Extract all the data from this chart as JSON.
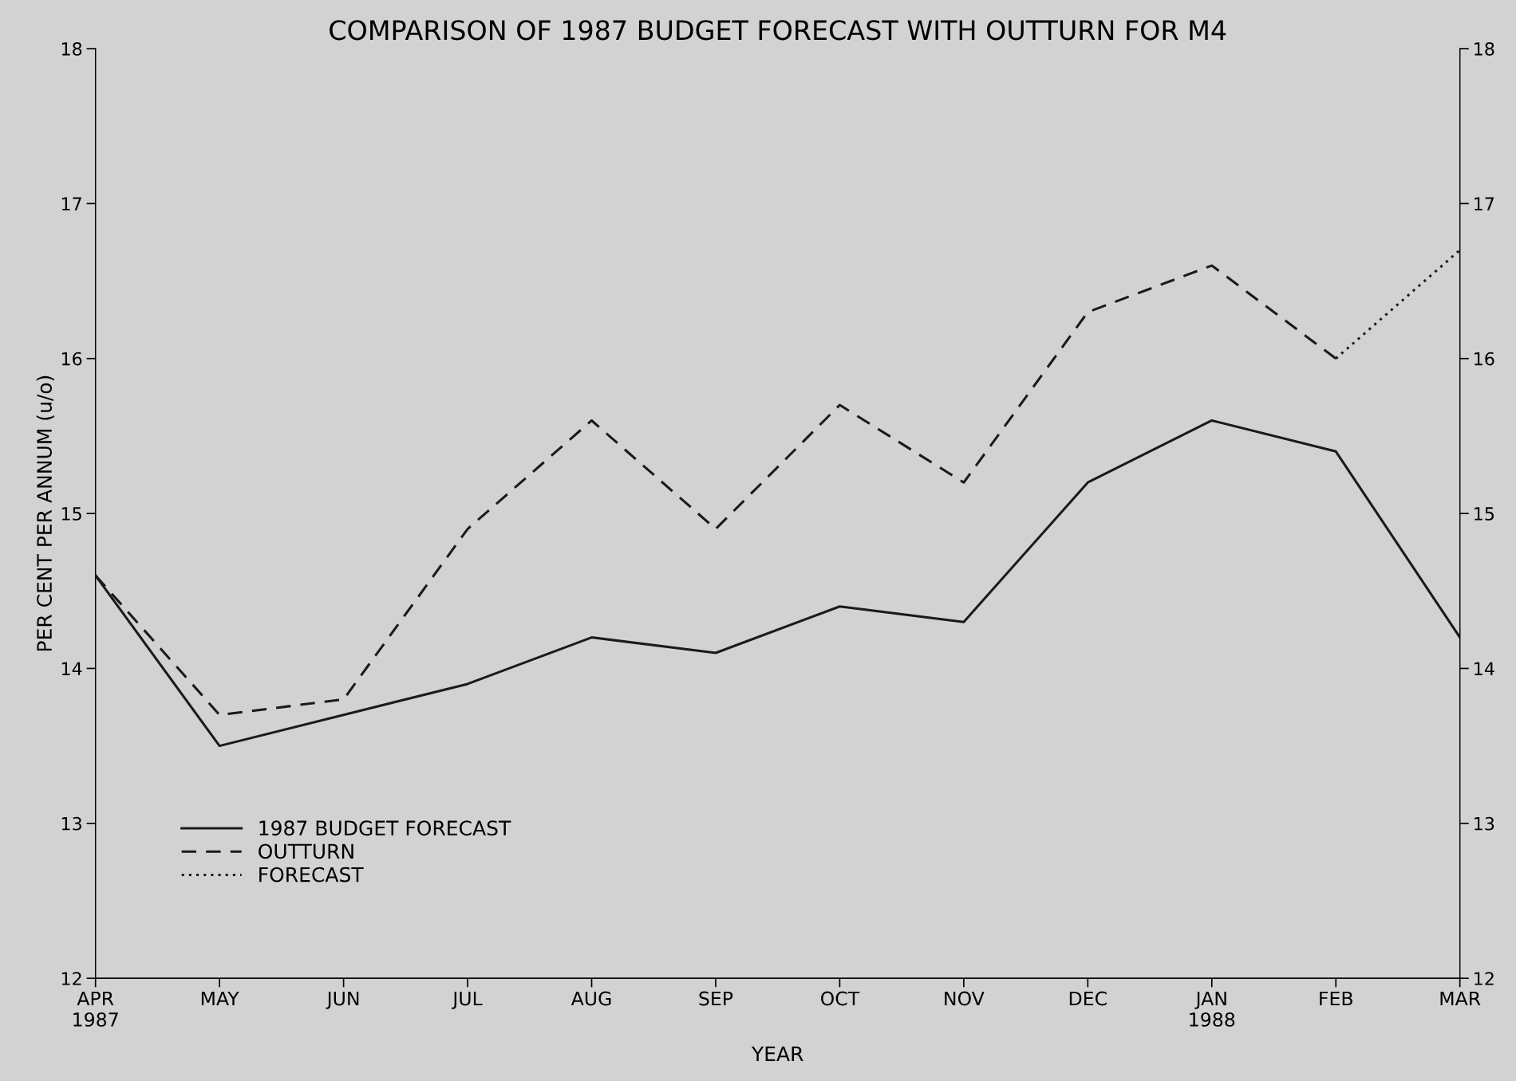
{
  "chart_data": {
    "type": "line",
    "title": "COMPARISON OF 1987 BUDGET FORECAST WITH OUTTURN FOR M4",
    "xlabel": "YEAR",
    "ylabel": "PER CENT PER ANNUM (u/o)",
    "categories": [
      "APR\n1987",
      "MAY",
      "JUN",
      "JUL",
      "AUG",
      "SEP",
      "OCT",
      "NOV",
      "DEC",
      "JAN\n1988",
      "FEB",
      "MAR"
    ],
    "series": [
      {
        "name": "1987 BUDGET FORECAST",
        "color": "#1a1a1a",
        "line_style": "solid",
        "values": [
          14.6,
          13.5,
          13.7,
          13.9,
          14.2,
          14.1,
          14.4,
          14.3,
          15.2,
          15.6,
          15.4,
          14.2
        ]
      },
      {
        "name": "OUTTURN",
        "color": "#1a1a1a",
        "line_style": "dashed",
        "values": [
          14.6,
          13.7,
          13.8,
          14.9,
          15.6,
          14.9,
          15.7,
          15.2,
          16.3,
          16.6,
          16.0,
          null
        ]
      },
      {
        "name": "FORECAST",
        "color": "#1a1a1a",
        "line_style": "dotted",
        "values": [
          null,
          null,
          null,
          null,
          null,
          null,
          null,
          null,
          null,
          null,
          16.0,
          16.7
        ]
      }
    ],
    "ylim": [
      12,
      18
    ],
    "yticks": [
      12,
      13,
      14,
      15,
      16,
      17,
      18
    ],
    "y2lim": [
      12,
      18
    ],
    "y2ticks": [
      12,
      13,
      14,
      15,
      16,
      17,
      18
    ],
    "grid": false,
    "legend": "bottom left"
  }
}
